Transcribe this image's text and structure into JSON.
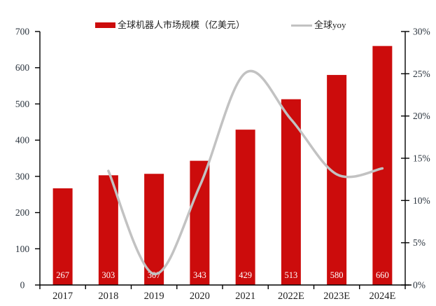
{
  "chart_data": {
    "type": "bar+line",
    "categories": [
      "2017",
      "2018",
      "2019",
      "2020",
      "2021",
      "2022E",
      "2023E",
      "2024E"
    ],
    "series": [
      {
        "name": "全球机器人市场规模（亿美元）",
        "type": "bar",
        "axis": "left",
        "color": "#CC0C0C",
        "values": [
          267,
          303,
          307,
          343,
          429,
          513,
          580,
          660
        ],
        "data_labels": [
          "267",
          "303",
          "307",
          "343",
          "429",
          "513",
          "580",
          "660"
        ],
        "data_label_color": "#FFFFFF"
      },
      {
        "name": "全球yoy",
        "type": "line",
        "axis": "right",
        "color": "#C2C2C2",
        "smooth": true,
        "values": [
          null,
          13.5,
          1.3,
          11.7,
          25.1,
          19.6,
          13.1,
          13.8
        ]
      }
    ],
    "left_axis": {
      "min": 0,
      "max": 700,
      "step": 100,
      "ticks": [
        "0",
        "100",
        "200",
        "300",
        "400",
        "500",
        "600",
        "700"
      ]
    },
    "right_axis": {
      "min": 0,
      "max": 30,
      "step": 5,
      "ticks": [
        "0%",
        "5%",
        "10%",
        "15%",
        "20%",
        "25%",
        "30%"
      ]
    },
    "legend": {
      "position": "top",
      "items": [
        {
          "label": "全球机器人市场规模（亿美元）",
          "swatch": "bar",
          "color": "#CC0C0C"
        },
        {
          "label": "全球yoy",
          "swatch": "line",
          "color": "#C2C2C2"
        }
      ]
    },
    "grid": false,
    "background": "#FFFFFF",
    "axis_color": "#000000",
    "title": "",
    "xlabel": "",
    "ylabel": ""
  }
}
